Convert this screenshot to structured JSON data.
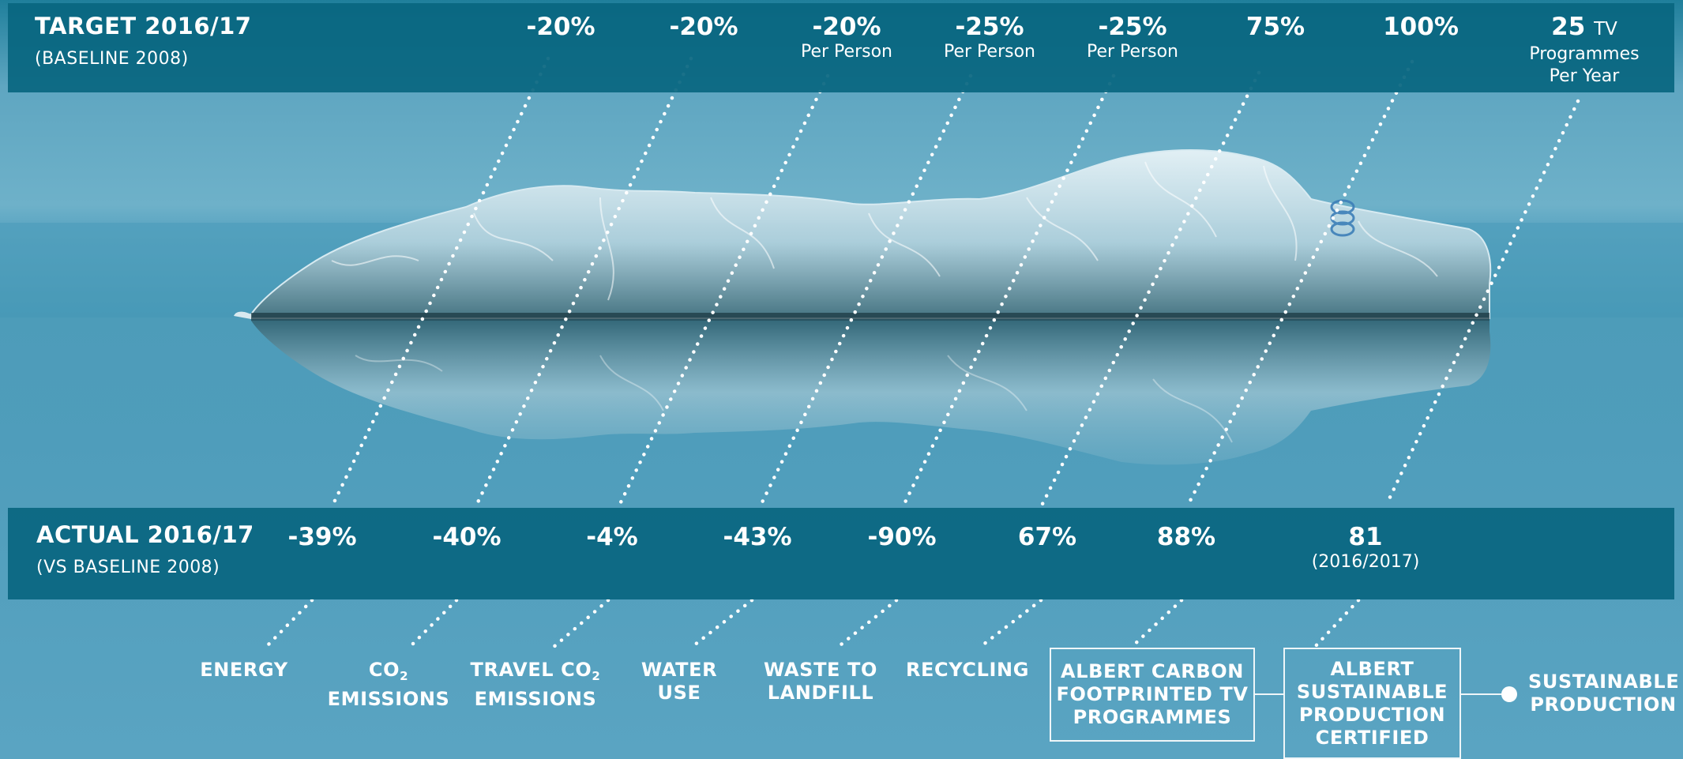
{
  "target": {
    "title": "TARGET 2016/17",
    "subtitle": "(BASELINE 2008)",
    "columns": [
      {
        "value": "-20%",
        "note": ""
      },
      {
        "value": "-20%",
        "note": ""
      },
      {
        "value": "-20%",
        "note": "Per Person"
      },
      {
        "value": "-25%",
        "note": "Per Person"
      },
      {
        "value": "-25%",
        "note": "Per Person"
      },
      {
        "value": "75%",
        "note": ""
      },
      {
        "value": "100%",
        "note": ""
      },
      {
        "value": "25",
        "unit": "TV",
        "note": "Programmes",
        "note2": "Per Year"
      }
    ]
  },
  "actual": {
    "title": "ACTUAL 2016/17",
    "subtitle": "(VS BASELINE 2008)",
    "columns": [
      {
        "value": "-39%",
        "note": ""
      },
      {
        "value": "-40%",
        "note": ""
      },
      {
        "value": "-4%",
        "note": ""
      },
      {
        "value": "-43%",
        "note": ""
      },
      {
        "value": "-90%",
        "note": ""
      },
      {
        "value": "67%",
        "note": ""
      },
      {
        "value": "88%",
        "note": ""
      },
      {
        "value": "81",
        "note": "(2016/2017)"
      }
    ]
  },
  "labels": [
    {
      "line1": "ENERGY",
      "line2": ""
    },
    {
      "line1": "CO",
      "sub": "2",
      "line2": "EMISSIONS"
    },
    {
      "line1": "TRAVEL CO",
      "sub": "2",
      "line2": "EMISSIONS"
    },
    {
      "line1": "WATER",
      "line2": "USE"
    },
    {
      "line1": "WASTE TO",
      "line2": "LANDFILL"
    },
    {
      "line1": "RECYCLING",
      "line2": ""
    }
  ],
  "boxes": [
    {
      "text": "ALBERT CARBON FOOTPRINTED TV PROGRAMMES"
    },
    {
      "text": "ALBERT SUSTAINABLE PRODUCTION CERTIFIED"
    }
  ],
  "end_label": {
    "line1": "SUSTAINABLE",
    "line2": "PRODUCTION"
  },
  "colors": {
    "band": "#096680",
    "sea": "#5fa6c1",
    "text": "#ffffff"
  }
}
